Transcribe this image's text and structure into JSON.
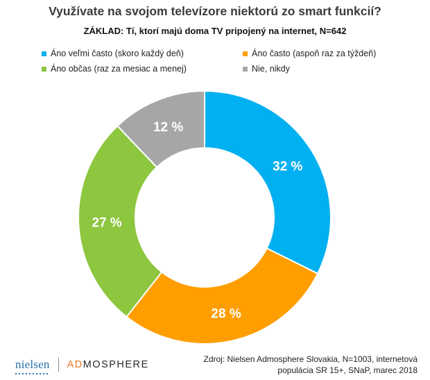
{
  "chart_data": {
    "type": "pie",
    "title": "Využívate na svojom televízore niektorú zo smart funkcií?",
    "subtitle": "ZÁKLAD: Tí, ktorí majú doma TV pripojený na internet, N=642",
    "legend_placement": "top",
    "categories": [
      "Áno veľmi často (skoro každý deň)",
      "Áno často (aspoň raz za týždeň)",
      "Áno občas (raz za mesiac a menej)",
      "Nie, nikdy"
    ],
    "values": [
      32,
      28,
      27,
      12
    ],
    "value_labels": [
      "32 %",
      "28 %",
      "27 %",
      "12 %"
    ],
    "colors": [
      "#00b0f0",
      "#ff9e00",
      "#8dc63f",
      "#a6a6a6"
    ],
    "donut": true
  },
  "legend": {
    "items": [
      {
        "label": "Áno veľmi často (skoro každý deň)",
        "color": "#00b0f0"
      },
      {
        "label": "Áno často (aspoň raz za týždeň)",
        "color": "#ff9e00"
      },
      {
        "label": "Áno občas (raz za mesiac a menej)",
        "color": "#8dc63f"
      },
      {
        "label": "Nie, nikdy",
        "color": "#a6a6a6"
      }
    ]
  },
  "footer": {
    "logo_left": "nielsen",
    "logo_right_accent": "AD",
    "logo_right_rest": "MOSPHERE",
    "source_line1": "Zdroj: Nielsen Admosphere Slovakia, N=1003, internetová",
    "source_line2": "populácia SR 15+, SNaP, marec 2018"
  }
}
